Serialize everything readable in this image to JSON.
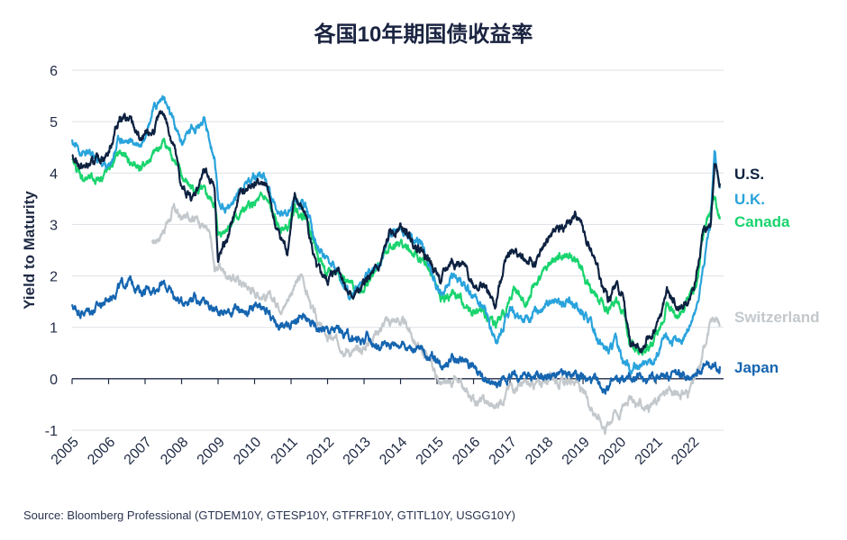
{
  "chart_data": {
    "type": "line",
    "title": "各国10年期国债收益率",
    "ylabel": "Yield to Maturity",
    "xlabel": "",
    "xlim": [
      2005.0,
      2022.85
    ],
    "ylim": [
      -1,
      6
    ],
    "y_ticks": [
      "6",
      "5",
      "4",
      "3",
      "2",
      "1",
      "0",
      "-1"
    ],
    "x_ticks": [
      "2005",
      "2006",
      "2007",
      "2008",
      "2009",
      "2010",
      "2011",
      "2012",
      "2013",
      "2014",
      "2015",
      "2016",
      "2017",
      "2018",
      "2019",
      "2020",
      "2021",
      "2022"
    ],
    "grid": "horizontal",
    "source": "Source: Bloomberg Professional (GTDEM10Y, GTESP10Y, GTFRF10Y, GTITL10Y, USGG10Y)",
    "series": [
      {
        "name": "Switzerland",
        "color": "#c3c8cc",
        "x": [
          2007.2,
          2007.5,
          2007.8,
          2008.0,
          2008.3,
          2008.6,
          2008.8,
          2008.9,
          2009.0,
          2009.3,
          2009.6,
          2010.0,
          2010.3,
          2010.6,
          2010.8,
          2011.0,
          2011.3,
          2011.6,
          2011.8,
          2012.0,
          2012.3,
          2012.6,
          2012.8,
          2013.0,
          2013.3,
          2013.6,
          2013.9,
          2014.2,
          2014.5,
          2014.8,
          2015.0,
          2015.2,
          2015.5,
          2015.8,
          2016.0,
          2016.3,
          2016.6,
          2016.8,
          2017.0,
          2017.3,
          2017.6,
          2017.9,
          2018.2,
          2018.5,
          2018.8,
          2019.0,
          2019.3,
          2019.6,
          2019.9,
          2020.0,
          2020.2,
          2020.5,
          2020.8,
          2021.0,
          2021.3,
          2021.6,
          2021.9,
          2022.2,
          2022.4,
          2022.6,
          2022.75
        ],
        "y": [
          2.6,
          2.9,
          3.3,
          3.1,
          3.2,
          3.0,
          2.7,
          2.1,
          2.2,
          2.0,
          1.9,
          1.7,
          1.6,
          1.5,
          1.4,
          1.7,
          2.0,
          1.3,
          1.0,
          0.8,
          0.7,
          0.55,
          0.5,
          0.6,
          0.9,
          1.1,
          1.15,
          1.0,
          0.6,
          0.4,
          0.0,
          -0.15,
          -0.05,
          -0.3,
          -0.4,
          -0.45,
          -0.55,
          -0.35,
          -0.15,
          -0.1,
          -0.15,
          -0.05,
          0.05,
          -0.1,
          0.0,
          -0.3,
          -0.6,
          -0.95,
          -0.6,
          -0.7,
          -0.35,
          -0.5,
          -0.55,
          -0.45,
          -0.25,
          -0.3,
          -0.25,
          0.2,
          0.9,
          1.2,
          1.05
        ]
      },
      {
        "name": "Japan",
        "color": "#1565b0",
        "x": [
          2005.0,
          2005.3,
          2005.6,
          2006.0,
          2006.3,
          2006.6,
          2006.9,
          2007.2,
          2007.5,
          2007.8,
          2008.0,
          2008.3,
          2008.6,
          2008.9,
          2009.2,
          2009.5,
          2009.8,
          2010.0,
          2010.3,
          2010.6,
          2010.9,
          2011.1,
          2011.4,
          2011.7,
          2012.0,
          2012.3,
          2012.6,
          2012.9,
          2013.1,
          2013.4,
          2013.7,
          2014.0,
          2014.3,
          2014.6,
          2014.9,
          2015.1,
          2015.4,
          2015.7,
          2016.0,
          2016.2,
          2016.5,
          2016.8,
          2017.0,
          2017.3,
          2017.6,
          2017.9,
          2018.2,
          2018.5,
          2018.8,
          2019.0,
          2019.3,
          2019.6,
          2019.9,
          2020.2,
          2020.5,
          2020.8,
          2021.1,
          2021.4,
          2021.7,
          2022.0,
          2022.3,
          2022.6,
          2022.75
        ],
        "y": [
          1.4,
          1.3,
          1.35,
          1.55,
          1.8,
          1.9,
          1.7,
          1.75,
          1.85,
          1.6,
          1.5,
          1.6,
          1.5,
          1.35,
          1.3,
          1.35,
          1.3,
          1.35,
          1.3,
          1.1,
          1.0,
          1.2,
          1.15,
          1.0,
          0.95,
          0.95,
          0.8,
          0.75,
          0.8,
          0.6,
          0.7,
          0.7,
          0.6,
          0.55,
          0.4,
          0.3,
          0.4,
          0.35,
          0.25,
          0.0,
          -0.15,
          -0.05,
          0.05,
          0.05,
          0.05,
          0.05,
          0.05,
          0.05,
          0.1,
          0.0,
          -0.05,
          -0.2,
          -0.05,
          0.0,
          0.02,
          0.03,
          0.05,
          0.08,
          0.05,
          0.12,
          0.22,
          0.23,
          0.24
        ]
      },
      {
        "name": "Canada",
        "color": "#19d46e",
        "x": [
          2005.0,
          2005.3,
          2005.6,
          2006.0,
          2006.3,
          2006.6,
          2006.9,
          2007.2,
          2007.5,
          2007.8,
          2008.0,
          2008.3,
          2008.6,
          2008.9,
          2009.0,
          2009.3,
          2009.6,
          2010.0,
          2010.3,
          2010.6,
          2010.9,
          2011.1,
          2011.4,
          2011.7,
          2012.0,
          2012.3,
          2012.6,
          2012.9,
          2013.1,
          2013.4,
          2013.7,
          2014.0,
          2014.3,
          2014.6,
          2014.9,
          2015.1,
          2015.4,
          2015.7,
          2016.0,
          2016.3,
          2016.6,
          2016.9,
          2017.1,
          2017.4,
          2017.7,
          2018.0,
          2018.3,
          2018.6,
          2018.9,
          2019.1,
          2019.4,
          2019.7,
          2019.9,
          2020.1,
          2020.3,
          2020.6,
          2020.9,
          2021.1,
          2021.3,
          2021.6,
          2021.9,
          2022.1,
          2022.3,
          2022.5,
          2022.6,
          2022.75
        ],
        "y": [
          4.2,
          3.9,
          3.85,
          4.05,
          4.4,
          4.2,
          4.1,
          4.3,
          4.6,
          4.3,
          3.9,
          3.7,
          3.6,
          3.4,
          2.8,
          3.0,
          3.2,
          3.4,
          3.5,
          3.0,
          2.9,
          3.3,
          3.2,
          2.5,
          2.0,
          2.1,
          1.8,
          1.75,
          1.85,
          2.2,
          2.6,
          2.65,
          2.45,
          2.25,
          2.0,
          1.5,
          1.65,
          1.5,
          1.3,
          1.25,
          1.05,
          1.35,
          1.75,
          1.5,
          1.85,
          2.15,
          2.35,
          2.4,
          2.25,
          1.85,
          1.6,
          1.3,
          1.55,
          1.35,
          0.6,
          0.55,
          0.65,
          0.9,
          1.5,
          1.2,
          1.6,
          1.8,
          2.8,
          3.3,
          3.55,
          3.1
        ]
      },
      {
        "name": "U.K.",
        "color": "#29a3dc",
        "x": [
          2005.0,
          2005.3,
          2005.6,
          2006.0,
          2006.3,
          2006.6,
          2006.9,
          2007.2,
          2007.5,
          2007.8,
          2008.0,
          2008.3,
          2008.6,
          2008.9,
          2009.0,
          2009.3,
          2009.6,
          2010.0,
          2010.3,
          2010.6,
          2010.9,
          2011.1,
          2011.4,
          2011.7,
          2012.0,
          2012.3,
          2012.6,
          2012.9,
          2013.1,
          2013.4,
          2013.7,
          2014.0,
          2014.3,
          2014.6,
          2014.9,
          2015.1,
          2015.4,
          2015.7,
          2016.0,
          2016.3,
          2016.6,
          2016.9,
          2017.1,
          2017.4,
          2017.7,
          2018.0,
          2018.3,
          2018.6,
          2018.9,
          2019.1,
          2019.4,
          2019.7,
          2019.9,
          2020.1,
          2020.3,
          2020.6,
          2020.9,
          2021.1,
          2021.3,
          2021.6,
          2021.9,
          2022.1,
          2022.3,
          2022.5,
          2022.6,
          2022.75
        ],
        "y": [
          4.6,
          4.4,
          4.3,
          4.1,
          4.7,
          4.6,
          4.6,
          5.2,
          5.5,
          4.9,
          4.6,
          4.9,
          5.0,
          4.3,
          3.4,
          3.3,
          3.7,
          4.0,
          3.9,
          3.3,
          3.2,
          3.5,
          3.4,
          2.6,
          2.2,
          2.1,
          1.6,
          1.8,
          2.1,
          2.2,
          2.8,
          2.9,
          2.7,
          2.6,
          2.0,
          1.6,
          2.0,
          1.9,
          1.6,
          1.45,
          0.65,
          1.25,
          1.3,
          1.1,
          1.3,
          1.55,
          1.45,
          1.5,
          1.3,
          1.2,
          0.8,
          0.5,
          0.75,
          0.4,
          0.2,
          0.25,
          0.3,
          0.55,
          0.8,
          0.65,
          1.0,
          1.3,
          2.2,
          3.0,
          4.5,
          3.7
        ]
      },
      {
        "name": "U.S.",
        "color": "#0d2140",
        "x": [
          2005.0,
          2005.3,
          2005.6,
          2006.0,
          2006.3,
          2006.6,
          2006.9,
          2007.2,
          2007.5,
          2007.8,
          2008.0,
          2008.3,
          2008.6,
          2008.9,
          2009.0,
          2009.3,
          2009.6,
          2010.0,
          2010.3,
          2010.6,
          2010.9,
          2011.1,
          2011.4,
          2011.7,
          2012.0,
          2012.3,
          2012.6,
          2012.9,
          2013.1,
          2013.4,
          2013.7,
          2014.0,
          2014.3,
          2014.6,
          2014.9,
          2015.1,
          2015.4,
          2015.7,
          2016.0,
          2016.3,
          2016.6,
          2016.9,
          2017.1,
          2017.4,
          2017.7,
          2018.0,
          2018.3,
          2018.6,
          2018.9,
          2019.1,
          2019.4,
          2019.7,
          2019.9,
          2020.1,
          2020.3,
          2020.6,
          2020.9,
          2021.1,
          2021.3,
          2021.6,
          2021.9,
          2022.1,
          2022.3,
          2022.5,
          2022.6,
          2022.75
        ],
        "y": [
          4.3,
          4.1,
          4.2,
          4.4,
          5.1,
          5.0,
          4.6,
          4.8,
          5.2,
          4.5,
          3.7,
          3.5,
          4.0,
          3.8,
          2.3,
          2.8,
          3.6,
          3.8,
          3.8,
          2.9,
          2.5,
          3.5,
          3.2,
          2.1,
          1.9,
          2.2,
          1.6,
          1.7,
          1.95,
          2.1,
          2.8,
          2.95,
          2.7,
          2.5,
          2.2,
          1.9,
          2.3,
          2.2,
          1.85,
          1.8,
          1.4,
          2.45,
          2.5,
          2.3,
          2.2,
          2.7,
          2.9,
          3.0,
          3.2,
          2.7,
          2.1,
          1.5,
          1.85,
          1.6,
          0.65,
          0.65,
          0.85,
          1.15,
          1.7,
          1.35,
          1.5,
          1.95,
          2.9,
          3.0,
          4.2,
          3.8
        ]
      }
    ]
  }
}
